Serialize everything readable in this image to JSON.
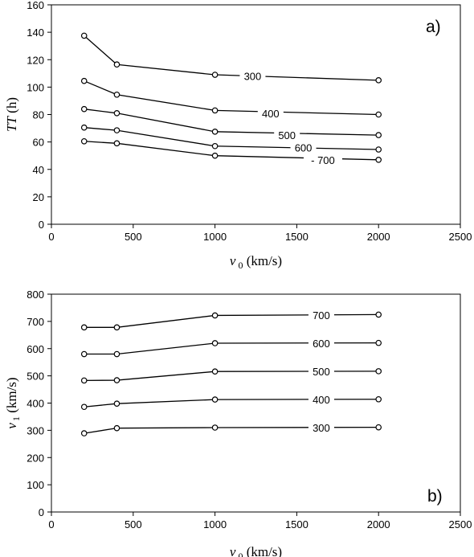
{
  "chart_data": [
    {
      "type": "line",
      "panel_label": "a)",
      "xlabel": {
        "main": "v",
        "sub": "0",
        "unit": " (km/s)"
      },
      "ylabel": {
        "main": "TT",
        "unit": " (h)"
      },
      "xlim": [
        0,
        2500
      ],
      "ylim": [
        0,
        160
      ],
      "xticks": [
        0,
        500,
        1000,
        1500,
        2000,
        2500
      ],
      "yticks": [
        0,
        20,
        40,
        60,
        80,
        100,
        120,
        140,
        160
      ],
      "grid": false,
      "series": [
        {
          "name": "300",
          "x": [
            200,
            400,
            1000,
            2000
          ],
          "y": [
            137.5,
            116.5,
            109,
            105
          ]
        },
        {
          "name": "400",
          "x": [
            200,
            400,
            1000,
            2000
          ],
          "y": [
            104.5,
            94.5,
            83,
            80
          ]
        },
        {
          "name": "500",
          "x": [
            200,
            400,
            1000,
            2000
          ],
          "y": [
            84,
            81,
            67.5,
            65
          ]
        },
        {
          "name": "600",
          "x": [
            200,
            400,
            1000,
            2000
          ],
          "y": [
            70.5,
            68.5,
            57,
            54.5
          ]
        },
        {
          "name": "700",
          "x": [
            200,
            400,
            1000,
            2000
          ],
          "y": [
            60.5,
            59,
            50,
            47
          ]
        }
      ]
    },
    {
      "type": "line",
      "panel_label": "b)",
      "xlabel": {
        "main": "v",
        "sub": "0",
        "unit": " (km/s)"
      },
      "ylabel": {
        "main": "v",
        "sub": "1",
        "unit": " (km/s)"
      },
      "xlim": [
        0,
        2500
      ],
      "ylim": [
        0,
        800
      ],
      "xticks": [
        0,
        500,
        1000,
        1500,
        2000,
        2500
      ],
      "yticks": [
        0,
        100,
        200,
        300,
        400,
        500,
        600,
        700,
        800
      ],
      "grid": false,
      "series": [
        {
          "name": "700",
          "x": [
            200,
            400,
            1000,
            2000
          ],
          "y": [
            678,
            678,
            722,
            725
          ]
        },
        {
          "name": "600",
          "x": [
            200,
            400,
            1000,
            2000
          ],
          "y": [
            580,
            580,
            620,
            621
          ]
        },
        {
          "name": "500",
          "x": [
            200,
            400,
            1000,
            2000
          ],
          "y": [
            483,
            484,
            516,
            517
          ]
        },
        {
          "name": "400",
          "x": [
            200,
            400,
            1000,
            2000
          ],
          "y": [
            386,
            398,
            413,
            414
          ]
        },
        {
          "name": "300",
          "x": [
            200,
            400,
            1000,
            2000
          ],
          "y": [
            289,
            308,
            310,
            311
          ]
        }
      ]
    }
  ]
}
